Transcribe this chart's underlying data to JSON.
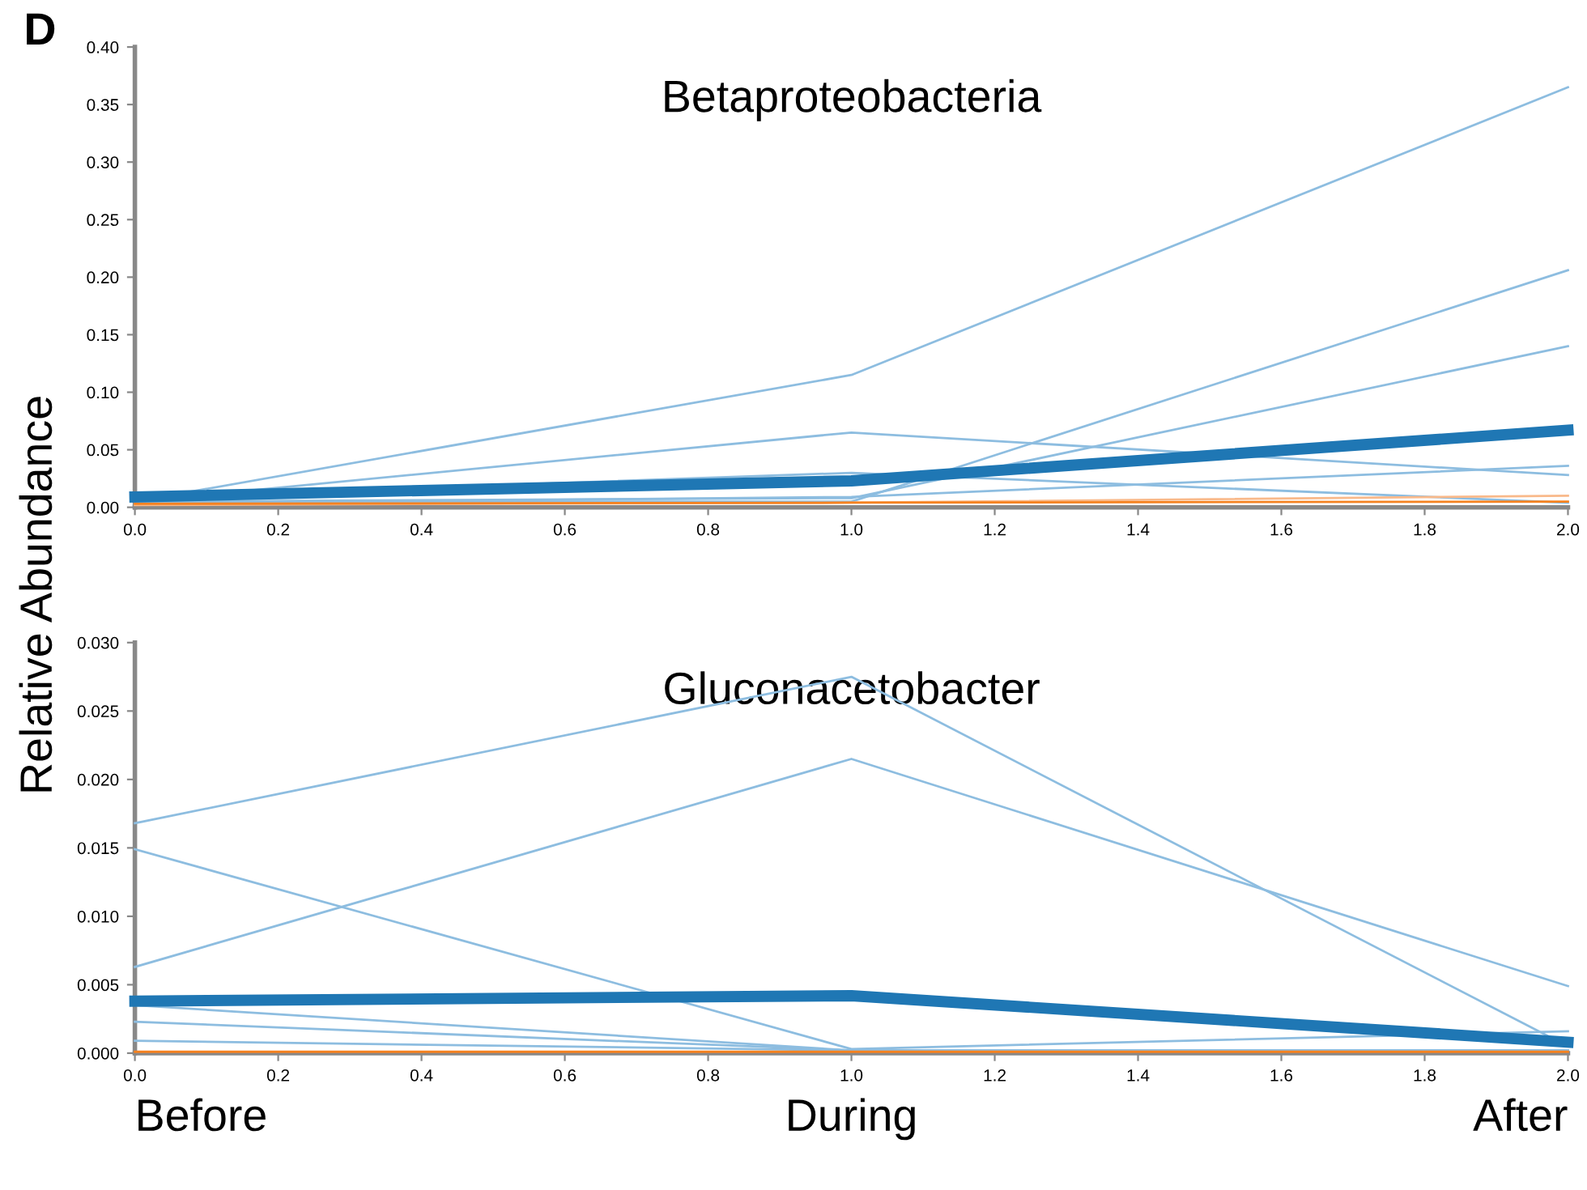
{
  "chart_data": [
    {
      "type": "line",
      "title": "Betaproteobacteria",
      "ylabel": "Relative Abundance",
      "annotations": [
        "D"
      ],
      "x": [
        0,
        1,
        2
      ],
      "series": [
        {
          "color": "#8dbde0",
          "values": [
            0.005,
            0.115,
            0.365
          ]
        },
        {
          "color": "#8dbde0",
          "values": [
            0.005,
            0.005,
            0.206
          ]
        },
        {
          "color": "#8dbde0",
          "values": [
            0.005,
            0.065,
            0.028
          ]
        },
        {
          "color": "#8dbde0",
          "values": [
            0.008,
            0.03,
            0.004
          ]
        },
        {
          "color": "#8dbde0",
          "values": [
            0.005,
            0.008,
            0.14
          ]
        },
        {
          "color": "#8dbde0",
          "values": [
            0.003,
            0.009,
            0.036
          ]
        },
        {
          "color": "#1f77b4",
          "values": [
            0.009,
            0.023,
            0.067
          ]
        },
        {
          "color": "#f9b98a",
          "values": [
            0.002,
            0.004,
            0.01
          ]
        },
        {
          "color": "#f58220",
          "values": [
            0.003,
            0.004,
            0.005
          ]
        }
      ],
      "xlim": [
        0,
        2
      ],
      "xticks": [
        {
          "value": 0,
          "label": "0.0"
        },
        0.2,
        0.4,
        0.6,
        0.8,
        {
          "value": 1,
          "label": "1.0"
        },
        1.2,
        1.4,
        1.6,
        1.8,
        {
          "value": 2,
          "label": "2.0"
        }
      ],
      "ylim": [
        0,
        0.4
      ],
      "yticks": [
        {
          "value": 0,
          "label": "0.00"
        },
        {
          "value": 0.05,
          "label": "0.05"
        },
        {
          "value": 0.1,
          "label": "0.10"
        },
        {
          "value": 0.15,
          "label": "0.15"
        },
        {
          "value": 0.2,
          "label": "0.20"
        },
        {
          "value": 0.25,
          "label": "0.25"
        },
        {
          "value": 0.3,
          "label": "0.30"
        },
        {
          "value": 0.35,
          "label": "0.35"
        },
        {
          "value": 0.4,
          "label": "0.40"
        }
      ],
      "grid": false,
      "legend": false,
      "marker": "none",
      "line_style": "solid"
    },
    {
      "type": "line",
      "title": "Gluconacetobacter",
      "annotations": [
        "Before",
        "During",
        "After"
      ],
      "x": [
        0,
        1,
        2
      ],
      "series": [
        {
          "color": "#8dbde0",
          "values": [
            0.0168,
            0.0275,
            0.0005
          ]
        },
        {
          "color": "#8dbde0",
          "values": [
            0.0063,
            0.0215,
            0.0049
          ]
        },
        {
          "color": "#8dbde0",
          "values": [
            0.0149,
            0.0003,
            0.0016
          ]
        },
        {
          "color": "#8dbde0",
          "values": [
            0.0035,
            0.0002,
            0.0002
          ]
        },
        {
          "color": "#8dbde0",
          "values": [
            0.0023,
            0.0002,
            0.0002
          ]
        },
        {
          "color": "#8dbde0",
          "values": [
            0.0009,
            0.0002,
            0.0002
          ]
        },
        {
          "color": "#1f77b4",
          "values": [
            0.0038,
            0.0042,
            0.0008
          ]
        },
        {
          "color": "#f58220",
          "values": [
            0.0001,
            0.0001,
            0.0001
          ]
        }
      ],
      "xlim": [
        0,
        2
      ],
      "xticks": [
        {
          "value": 0,
          "label": "0.0"
        },
        0.2,
        0.4,
        0.6,
        0.8,
        {
          "value": 1,
          "label": "1.0"
        },
        1.2,
        1.4,
        1.6,
        1.8,
        {
          "value": 2,
          "label": "2.0"
        }
      ],
      "ylim": [
        0,
        0.03
      ],
      "yticks": [
        {
          "value": 0,
          "label": "0.000"
        },
        {
          "value": 0.005,
          "label": "0.005"
        },
        {
          "value": 0.01,
          "label": "0.010"
        },
        {
          "value": 0.015,
          "label": "0.015"
        },
        {
          "value": 0.02,
          "label": "0.020"
        },
        {
          "value": 0.025,
          "label": "0.025"
        },
        {
          "value": 0.03,
          "label": "0.030"
        }
      ],
      "grid": false,
      "legend": false,
      "marker": "none",
      "line_style": "solid"
    }
  ]
}
